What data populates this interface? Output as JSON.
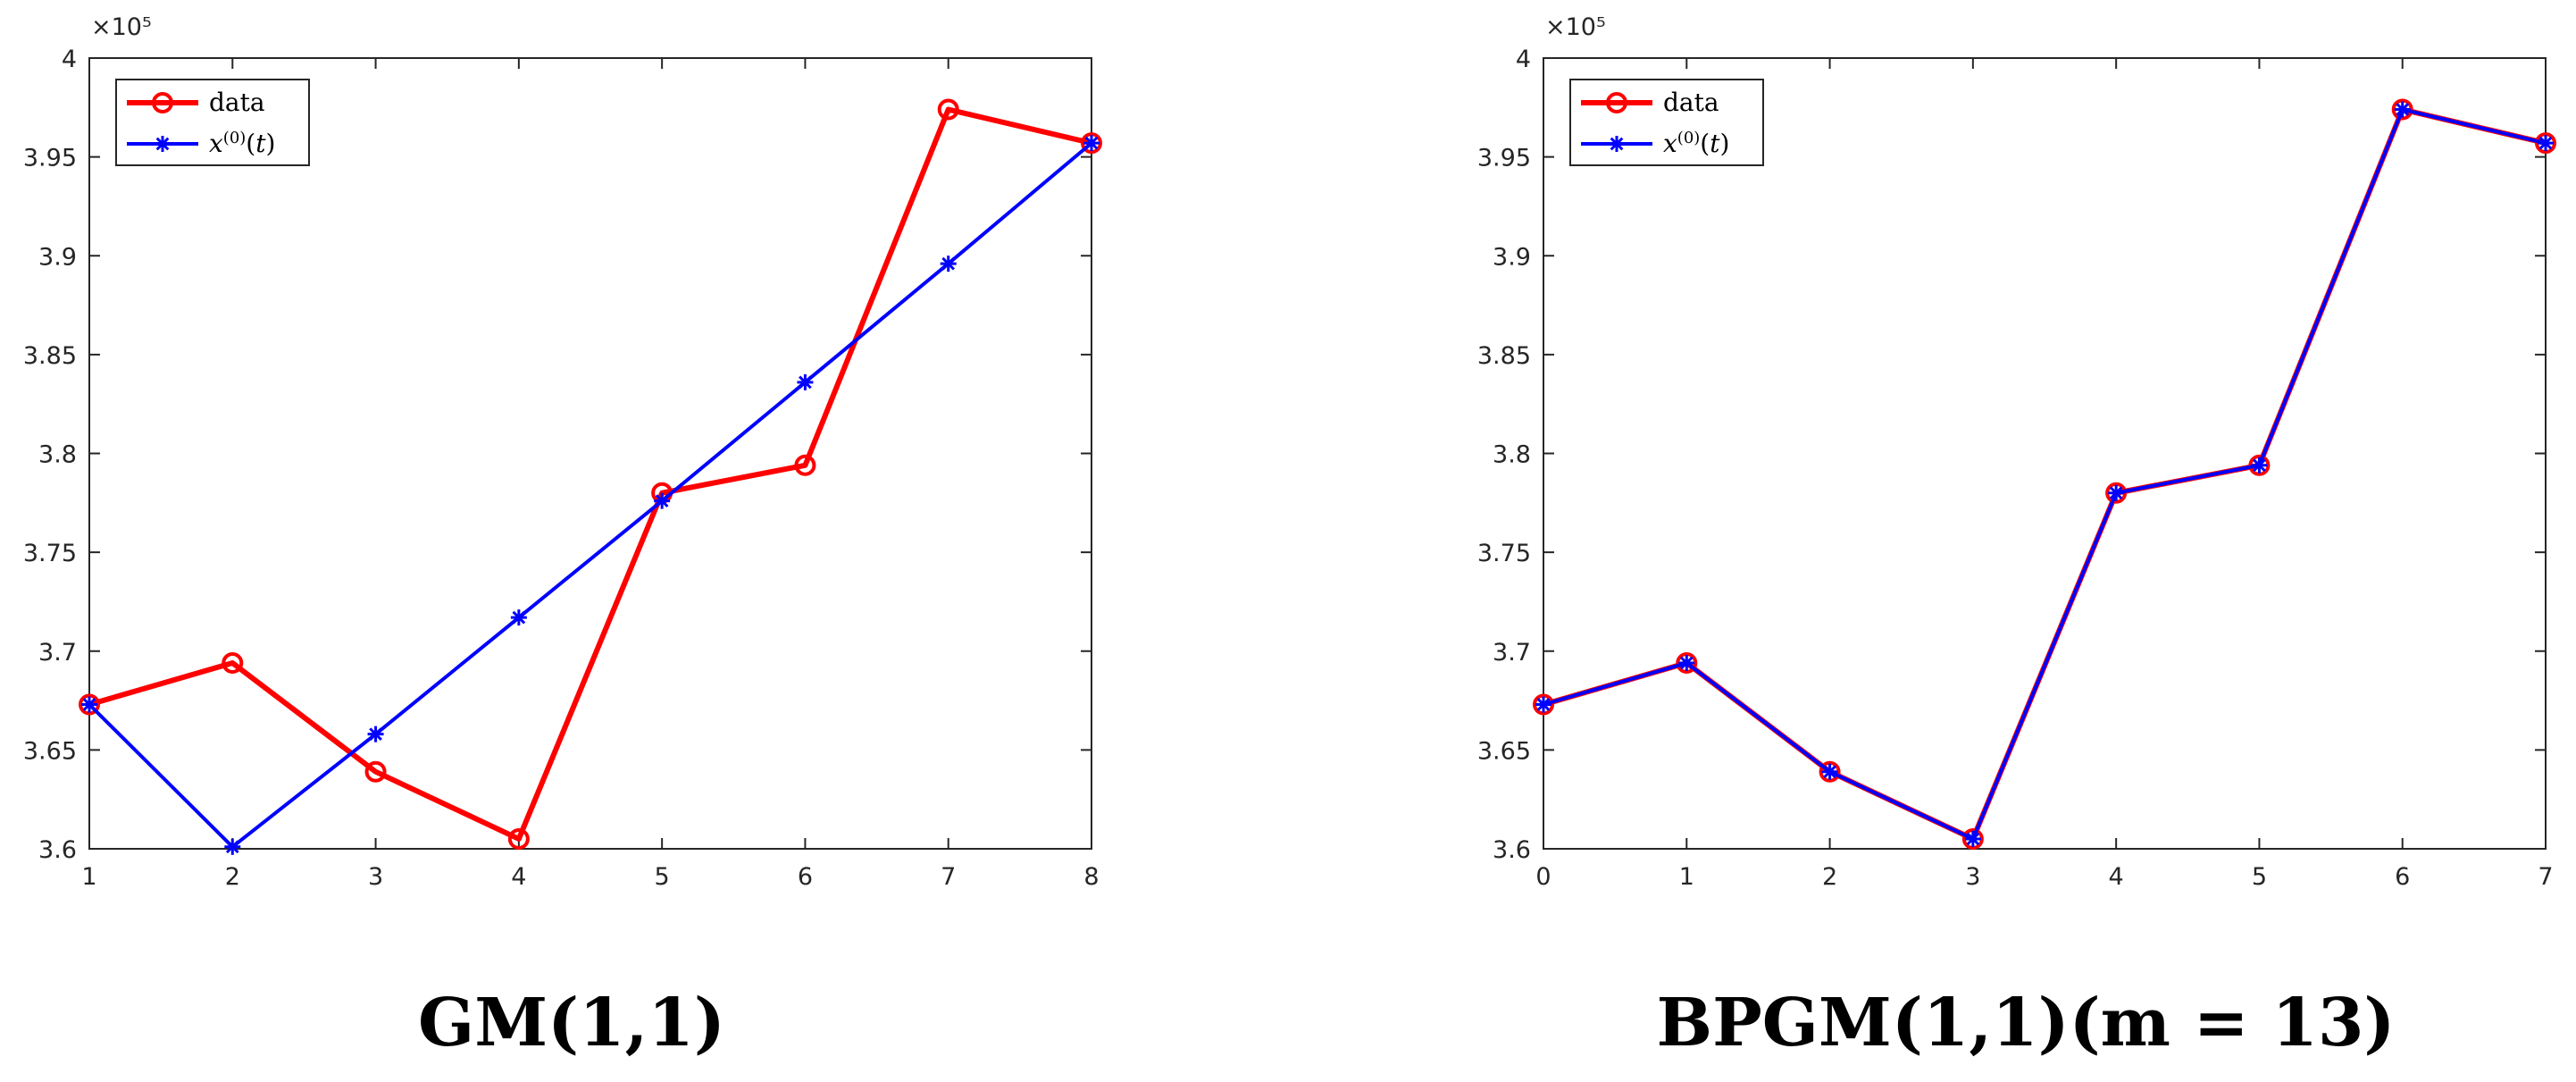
{
  "chart_data": [
    {
      "type": "line",
      "caption": "GM(1,1)",
      "exponent_label": "×10⁵",
      "x": [
        1,
        2,
        3,
        4,
        5,
        6,
        7,
        8
      ],
      "xlim": [
        1,
        8
      ],
      "xticks": [
        "1",
        "2",
        "3",
        "4",
        "5",
        "6",
        "7",
        "8"
      ],
      "ylim": [
        3.6,
        4.0
      ],
      "yticks": [
        "3.6",
        "3.65",
        "3.7",
        "3.75",
        "3.8",
        "3.85",
        "3.9",
        "3.95",
        "4"
      ],
      "legend_position": "top-left",
      "series": [
        {
          "name": "data",
          "color": "#ff0000",
          "marker": "circle",
          "values": [
            3.673,
            3.694,
            3.639,
            3.605,
            3.78,
            3.794,
            3.974,
            3.957
          ]
        },
        {
          "name": "x(0)(t)",
          "color": "#0000ff",
          "marker": "asterisk",
          "values": [
            3.673,
            3.601,
            3.658,
            3.717,
            3.776,
            3.836,
            3.896,
            3.957
          ]
        }
      ]
    },
    {
      "type": "line",
      "caption": "BPGM(1,1)(m = 13)",
      "exponent_label": "×10⁵",
      "x": [
        0,
        1,
        2,
        3,
        4,
        5,
        6,
        7
      ],
      "xlim": [
        0,
        7
      ],
      "xticks": [
        "0",
        "1",
        "2",
        "3",
        "4",
        "5",
        "6",
        "7"
      ],
      "ylim": [
        3.6,
        4.0
      ],
      "yticks": [
        "3.6",
        "3.65",
        "3.7",
        "3.75",
        "3.8",
        "3.85",
        "3.9",
        "3.95",
        "4"
      ],
      "legend_position": "top-left",
      "series": [
        {
          "name": "data",
          "color": "#ff0000",
          "marker": "circle",
          "values": [
            3.673,
            3.694,
            3.639,
            3.605,
            3.78,
            3.794,
            3.974,
            3.957
          ]
        },
        {
          "name": "x(0)(t)",
          "color": "#0000ff",
          "marker": "asterisk",
          "values": [
            3.673,
            3.694,
            3.639,
            3.605,
            3.78,
            3.794,
            3.974,
            3.957
          ]
        }
      ]
    }
  ]
}
